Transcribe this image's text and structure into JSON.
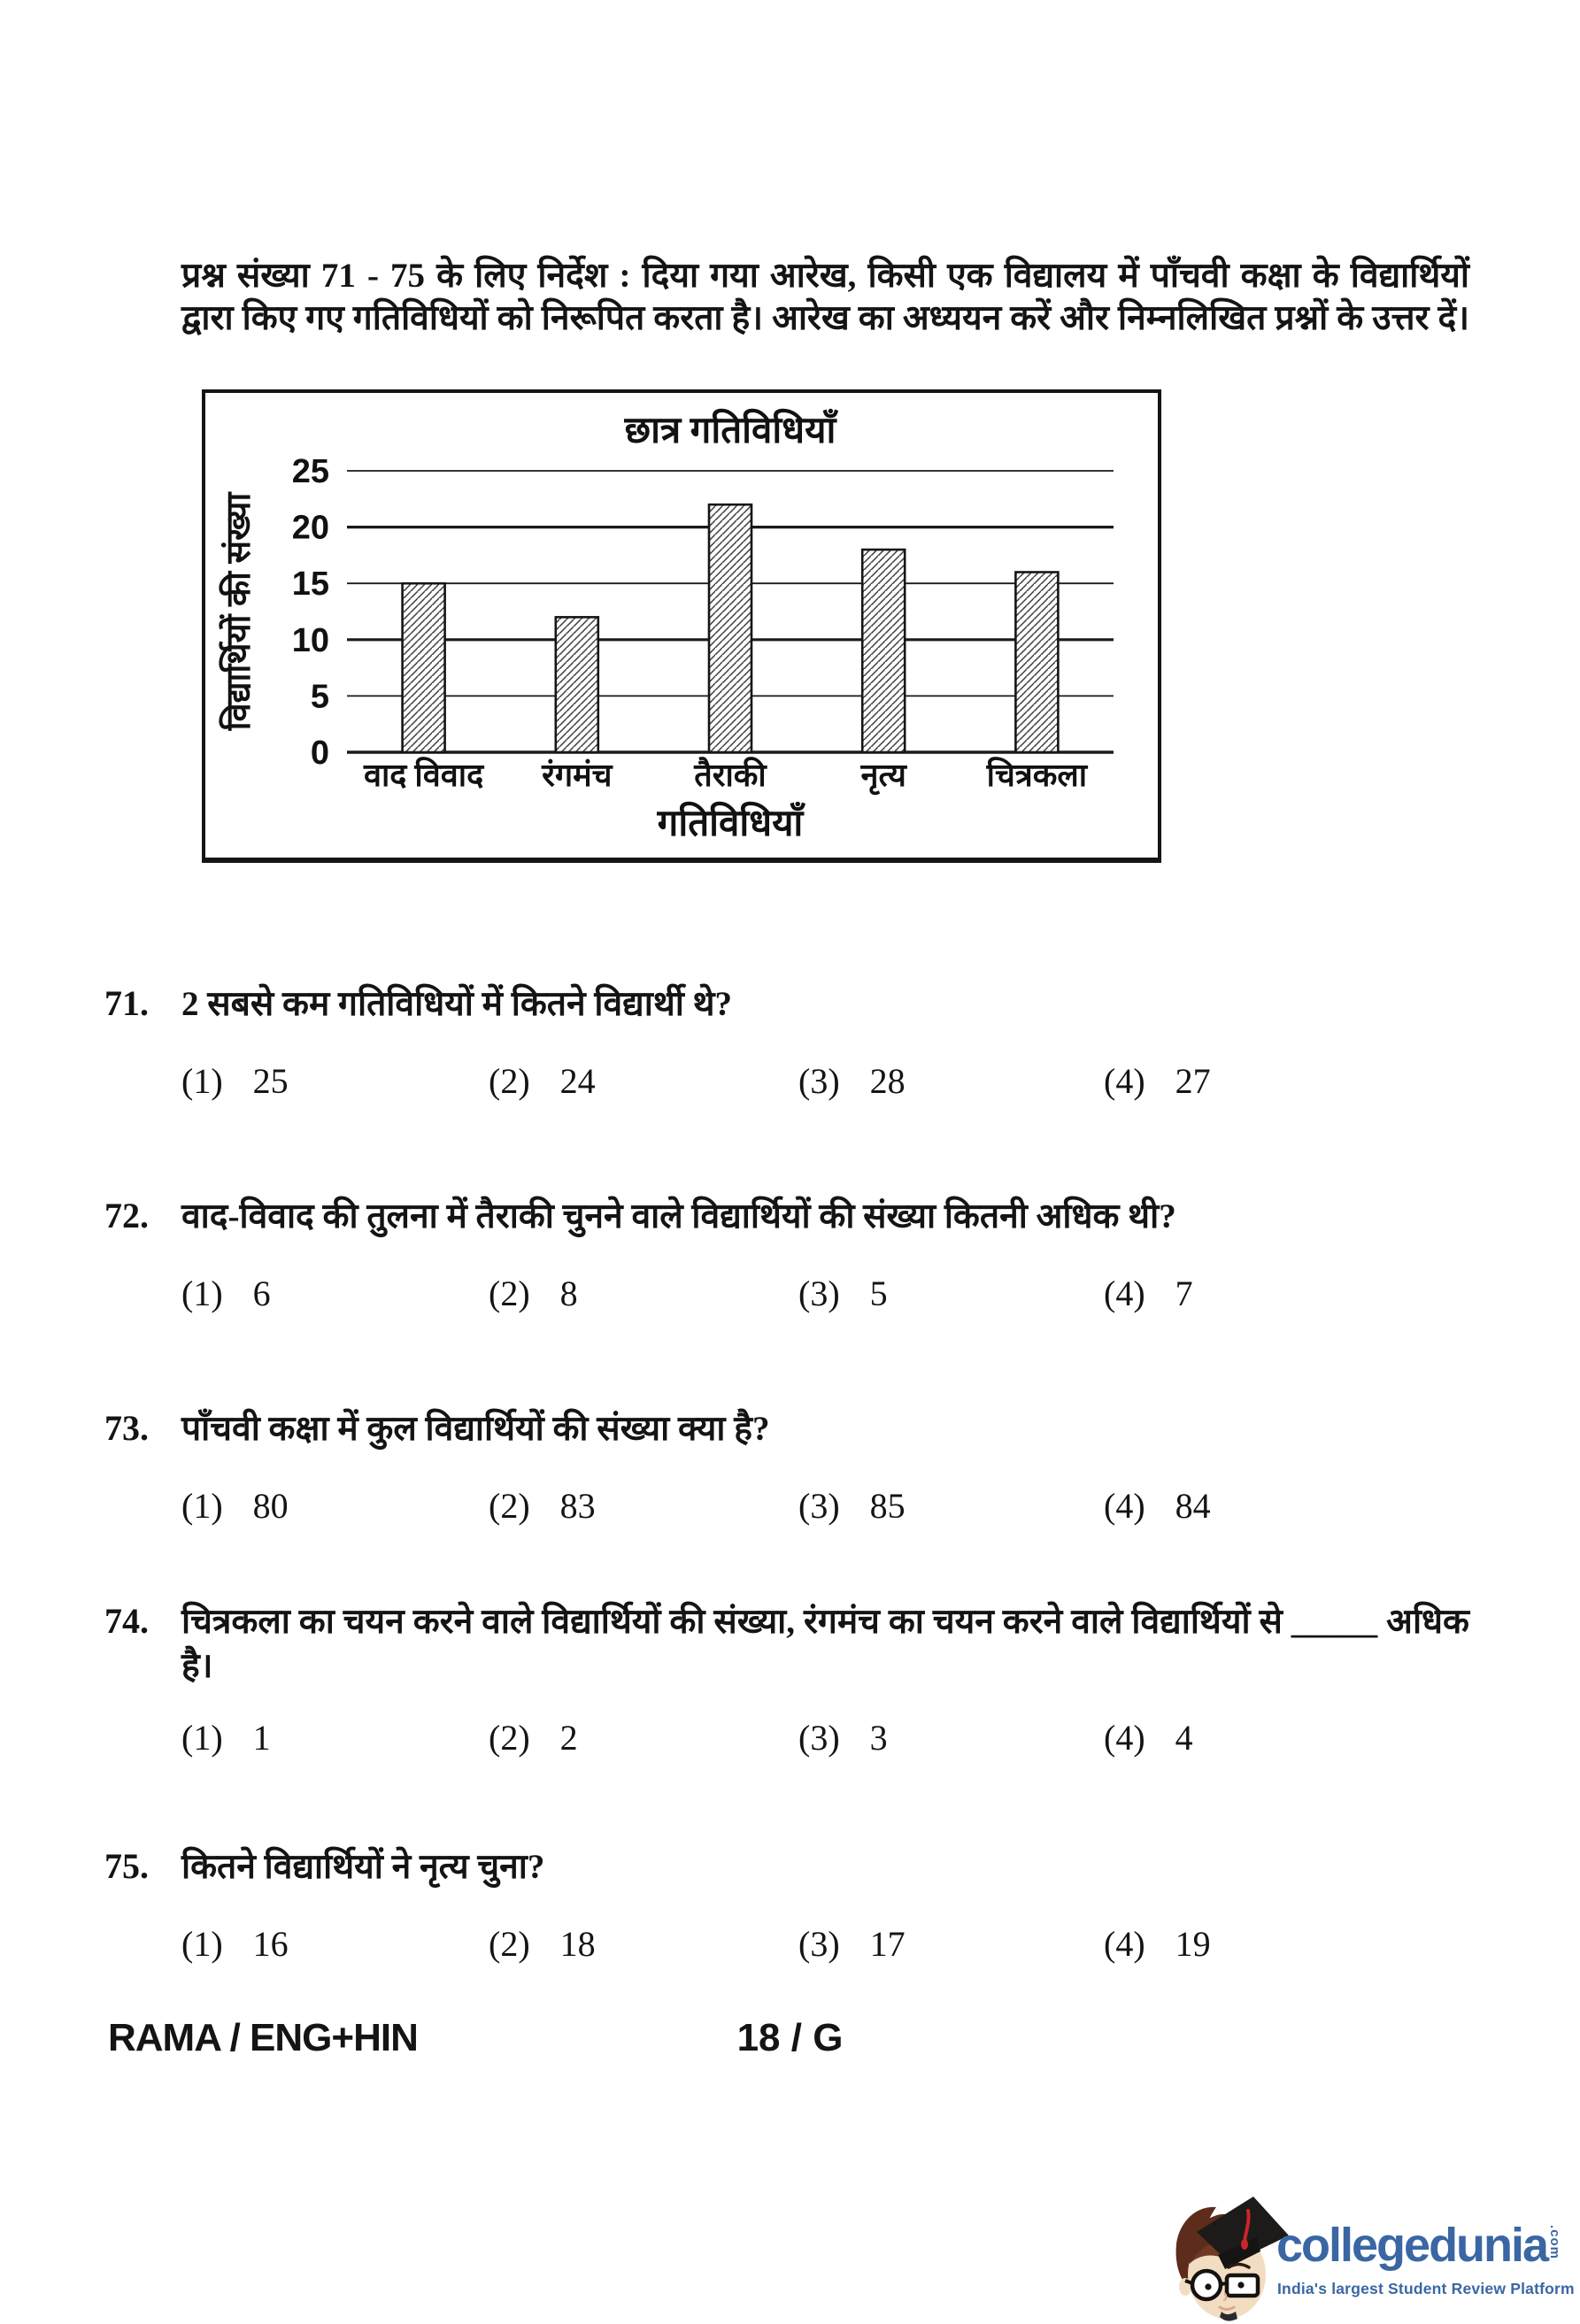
{
  "instruction": "प्रश्न संख्या 71 - 75 के लिए निर्देश : दिया गया आरेख, किसी एक विद्यालय में पाँचवी कक्षा के विद्यार्थियों द्वारा किए गए गतिविधियों को निरूपित करता है। आरेख का अध्ययन करें और निम्नलिखित प्रश्नों के उत्तर दें।",
  "chart_data": {
    "type": "bar",
    "title": "छात्र गतिविधियाँ",
    "categories": [
      "वाद विवाद",
      "रंगमंच",
      "तैराकी",
      "नृत्य",
      "चित्रकला"
    ],
    "values": [
      15,
      12,
      22,
      18,
      16
    ],
    "xlabel": "गतिविधियाँ",
    "ylabel": "विद्यार्थियों की संख्या",
    "ylim": [
      0,
      25
    ],
    "yticks": [
      0,
      5,
      10,
      15,
      20,
      25
    ],
    "grid": true,
    "legend": false,
    "bar_style": "diagonal-hatch"
  },
  "questions": [
    {
      "number": "71.",
      "text": "2 सबसे कम गतिविधियों में कितने विद्यार्थी थे?",
      "text2": "",
      "options": [
        {
          "m": "(1)",
          "v": "25"
        },
        {
          "m": "(2)",
          "v": "24"
        },
        {
          "m": "(3)",
          "v": "28"
        },
        {
          "m": "(4)",
          "v": "27"
        }
      ]
    },
    {
      "number": "72.",
      "text": "वाद-विवाद की तुलना में तैराकी चुनने वाले विद्यार्थियों की संख्या कितनी अधिक थी?",
      "text2": "",
      "options": [
        {
          "m": "(1)",
          "v": "6"
        },
        {
          "m": "(2)",
          "v": "8"
        },
        {
          "m": "(3)",
          "v": "5"
        },
        {
          "m": "(4)",
          "v": "7"
        }
      ]
    },
    {
      "number": "73.",
      "text": "पाँचवी कक्षा में कुल विद्यार्थियों की संख्या क्या है?",
      "text2": "",
      "options": [
        {
          "m": "(1)",
          "v": "80"
        },
        {
          "m": "(2)",
          "v": "83"
        },
        {
          "m": "(3)",
          "v": "85"
        },
        {
          "m": "(4)",
          "v": "84"
        }
      ]
    },
    {
      "number": "74.",
      "text": "चित्रकला का चयन करने वाले विद्यार्थियों की संख्या, रंगमंच का चयन करने वाले विद्यार्थियों से _____ अधिक",
      "text2": "है।",
      "options": [
        {
          "m": "(1)",
          "v": "1"
        },
        {
          "m": "(2)",
          "v": "2"
        },
        {
          "m": "(3)",
          "v": "3"
        },
        {
          "m": "(4)",
          "v": "4"
        }
      ]
    },
    {
      "number": "75.",
      "text": "कितने विद्यार्थियों ने नृत्य चुना?",
      "text2": "",
      "options": [
        {
          "m": "(1)",
          "v": "16"
        },
        {
          "m": "(2)",
          "v": "18"
        },
        {
          "m": "(3)",
          "v": "17"
        },
        {
          "m": "(4)",
          "v": "19"
        }
      ]
    }
  ],
  "footer": {
    "left": "RAMA / ENG+HIN",
    "center": "18 / G"
  },
  "logo": {
    "brand": "collegedunia",
    "suffix": ".com",
    "tagline": "India's largest Student Review Platform"
  },
  "colors": {
    "brand_blue": "#3a67a3",
    "tassel_red": "#c9252b",
    "hair_brown": "#5d2c1b",
    "skin": "#f3ddc2",
    "cap_black": "#1c1b1a",
    "ink": "#141414"
  }
}
